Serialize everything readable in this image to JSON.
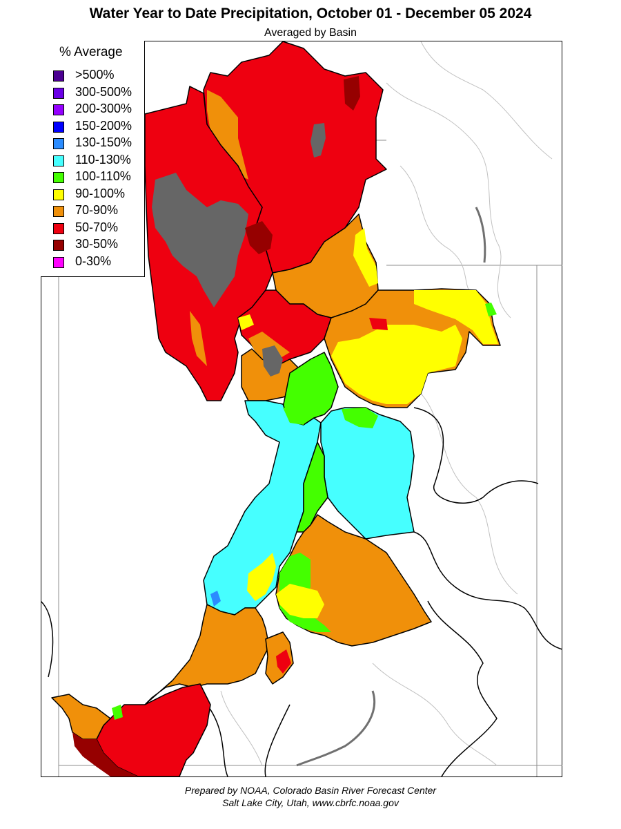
{
  "title": "Water Year to Date Precipitation, October 01  - December 05 2024",
  "subtitle": "Averaged by Basin",
  "legend": {
    "title": "% Average",
    "items": [
      {
        "label": ">500%",
        "color": "#4b0091"
      },
      {
        "label": "300-500%",
        "color": "#6a00e6"
      },
      {
        "label": "200-300%",
        "color": "#9400ff"
      },
      {
        "label": "150-200%",
        "color": "#0000ff"
      },
      {
        "label": "130-150%",
        "color": "#2b8cff"
      },
      {
        "label": "110-130%",
        "color": "#46ffff"
      },
      {
        "label": "100-110%",
        "color": "#44ff00"
      },
      {
        "label": "90-100%",
        "color": "#ffff00"
      },
      {
        "label": "70-90%",
        "color": "#f0900a"
      },
      {
        "label": "50-70%",
        "color": "#ee0010"
      },
      {
        "label": "30-50%",
        "color": "#960000"
      },
      {
        "label": "0-30%",
        "color": "#ff00ff"
      }
    ]
  },
  "colors": {
    "no_data": "#666666",
    "basin_border": "#000000",
    "state_line": "#8c8c8c",
    "river": "#b4b4b4"
  },
  "footer": {
    "line1": "Prepared by NOAA, Colorado Basin River Forecast Center",
    "line2": "Salt Lake City, Utah, www.cbrfc.noaa.gov"
  }
}
